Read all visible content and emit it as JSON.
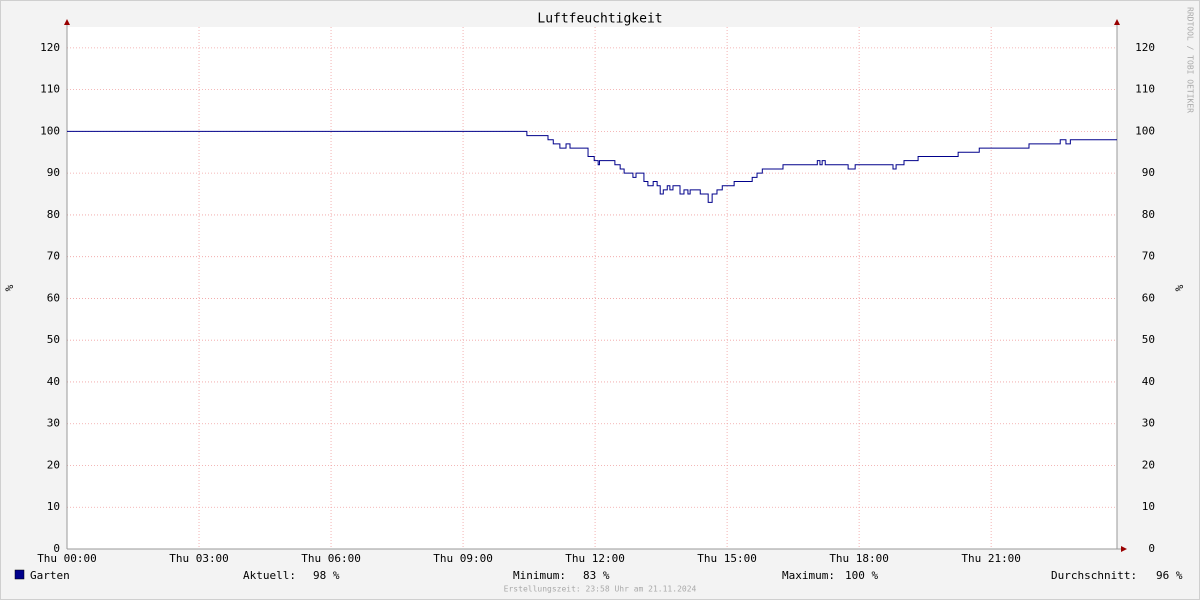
{
  "chart_data": {
    "type": "line",
    "title": "Luftfeuchtigkeit",
    "ylabel": "%",
    "y2label": "%",
    "step": "post",
    "x": [
      0,
      10.45,
      10.93,
      11.05,
      11.2,
      11.34,
      11.43,
      11.84,
      11.98,
      12.07,
      12.1,
      12.45,
      12.57,
      12.66,
      12.86,
      12.93,
      13.11,
      13.2,
      13.32,
      13.41,
      13.48,
      13.55,
      13.64,
      13.7,
      13.77,
      13.93,
      14.02,
      14.11,
      14.16,
      14.39,
      14.57,
      14.66,
      14.77,
      14.89,
      15.16,
      15.57,
      15.68,
      15.8,
      16.27,
      17.05,
      17.11,
      17.16,
      17.23,
      17.75,
      17.91,
      18.77,
      18.84,
      19.02,
      19.34,
      20.25,
      20.73,
      21.86,
      22.57,
      22.7,
      22.8,
      23.86
    ],
    "series": [
      {
        "name": "Garten",
        "color": "#00008b",
        "values": [
          100,
          99,
          98,
          97,
          96,
          97,
          96,
          94,
          93,
          92,
          93,
          92,
          91,
          90,
          89,
          90,
          88,
          87,
          88,
          87,
          85,
          86,
          87,
          86,
          87,
          85,
          86,
          85,
          86,
          85,
          83,
          85,
          86,
          87,
          88,
          89,
          90,
          91,
          92,
          93,
          92,
          93,
          92,
          91,
          92,
          91,
          92,
          93,
          94,
          95,
          96,
          97,
          98,
          97,
          98,
          98
        ]
      }
    ],
    "xlim": [
      0,
      23.86
    ],
    "xticks": [
      {
        "value": 0,
        "label": "Thu 00:00"
      },
      {
        "value": 3,
        "label": "Thu 03:00"
      },
      {
        "value": 6,
        "label": "Thu 06:00"
      },
      {
        "value": 9,
        "label": "Thu 09:00"
      },
      {
        "value": 12,
        "label": "Thu 12:00"
      },
      {
        "value": 15,
        "label": "Thu 15:00"
      },
      {
        "value": 18,
        "label": "Thu 18:00"
      },
      {
        "value": 21,
        "label": "Thu 21:00"
      }
    ],
    "ylim": [
      0,
      125
    ],
    "yticks": [
      0,
      10,
      20,
      30,
      40,
      50,
      60,
      70,
      80,
      90,
      100,
      110,
      120
    ],
    "grid": true,
    "stats": [
      {
        "label": "Aktuell:",
        "value": "98 %"
      },
      {
        "label": "Minimum:",
        "value": "83 %"
      },
      {
        "label": "Maximum:",
        "value": "100 %"
      },
      {
        "label": "Durchschnitt:",
        "value": "96 %"
      }
    ],
    "footer": "Erstellungszeit: 23:58 Uhr am 21.11.2024",
    "watermark": "RRDTOOL / TOBI OETIKER"
  }
}
